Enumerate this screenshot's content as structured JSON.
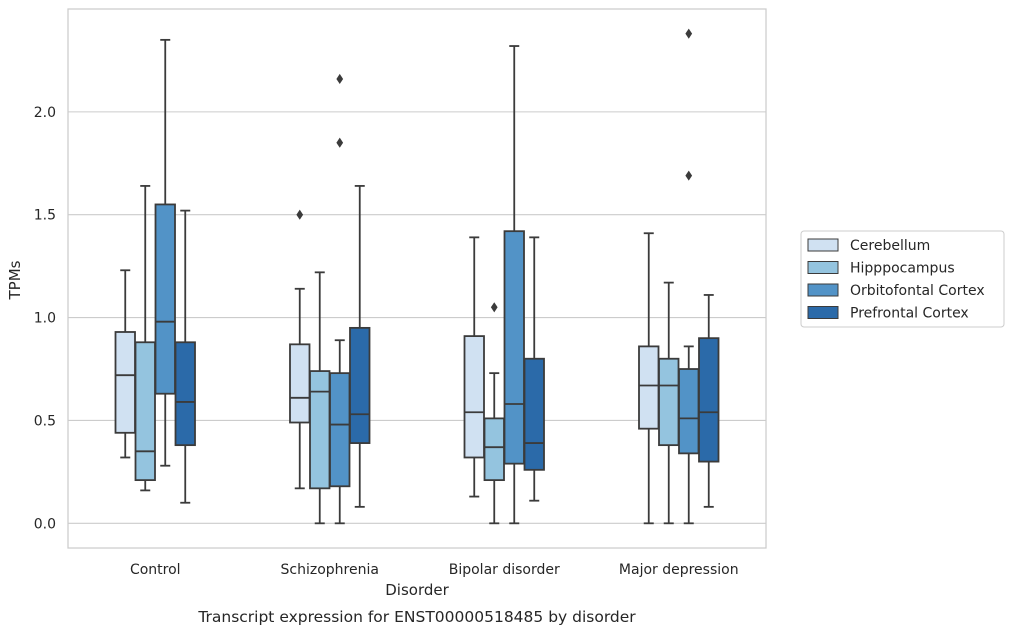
{
  "chart_data": {
    "type": "box",
    "title": "Transcript expression for ENST00000518485 by disorder",
    "xlabel": "Disorder",
    "ylabel": "TPMs",
    "ylim": [
      -0.12,
      2.5
    ],
    "yticks": [
      0.0,
      0.5,
      1.0,
      1.5,
      2.0
    ],
    "ytick_labels": [
      "0.0",
      "0.5",
      "1.0",
      "1.5",
      "2.0"
    ],
    "grid": "horizontal",
    "legend_position": "right",
    "categories": [
      "Control",
      "Schizophrenia",
      "Bipolar disorder",
      "Major depression"
    ],
    "series": [
      {
        "name": "Cerebellum",
        "color": "#d0e1f2",
        "boxes": [
          {
            "whislo": 0.32,
            "q1": 0.44,
            "med": 0.72,
            "q3": 0.93,
            "whishi": 1.23,
            "fliers": []
          },
          {
            "whislo": 0.17,
            "q1": 0.49,
            "med": 0.61,
            "q3": 0.87,
            "whishi": 1.14,
            "fliers": [
              1.5
            ]
          },
          {
            "whislo": 0.13,
            "q1": 0.32,
            "med": 0.54,
            "q3": 0.91,
            "whishi": 1.39,
            "fliers": []
          },
          {
            "whislo": 0.0,
            "q1": 0.46,
            "med": 0.67,
            "q3": 0.86,
            "whishi": 1.41,
            "fliers": []
          }
        ]
      },
      {
        "name": "Hipppocampus",
        "color": "#94c4df",
        "boxes": [
          {
            "whislo": 0.16,
            "q1": 0.21,
            "med": 0.35,
            "q3": 0.88,
            "whishi": 1.64,
            "fliers": []
          },
          {
            "whislo": 0.0,
            "q1": 0.17,
            "med": 0.64,
            "q3": 0.74,
            "whishi": 1.22,
            "fliers": []
          },
          {
            "whislo": 0.0,
            "q1": 0.21,
            "med": 0.37,
            "q3": 0.51,
            "whishi": 0.73,
            "fliers": [
              1.05
            ]
          },
          {
            "whislo": 0.0,
            "q1": 0.38,
            "med": 0.67,
            "q3": 0.8,
            "whishi": 1.17,
            "fliers": []
          }
        ]
      },
      {
        "name": "Orbitofontal Cortex",
        "color": "#5293c7",
        "boxes": [
          {
            "whislo": 0.28,
            "q1": 0.63,
            "med": 0.98,
            "q3": 1.55,
            "whishi": 2.35,
            "fliers": []
          },
          {
            "whislo": 0.0,
            "q1": 0.18,
            "med": 0.48,
            "q3": 0.73,
            "whishi": 0.89,
            "fliers": [
              1.85,
              2.16
            ]
          },
          {
            "whislo": 0.0,
            "q1": 0.29,
            "med": 0.58,
            "q3": 1.42,
            "whishi": 2.32,
            "fliers": []
          },
          {
            "whislo": 0.0,
            "q1": 0.34,
            "med": 0.51,
            "q3": 0.75,
            "whishi": 0.86,
            "fliers": [
              1.69,
              2.38
            ]
          }
        ]
      },
      {
        "name": "Prefrontal Cortex",
        "color": "#2b6aa9",
        "boxes": [
          {
            "whislo": 0.1,
            "q1": 0.38,
            "med": 0.59,
            "q3": 0.88,
            "whishi": 1.52,
            "fliers": []
          },
          {
            "whislo": 0.08,
            "q1": 0.39,
            "med": 0.53,
            "q3": 0.95,
            "whishi": 1.64,
            "fliers": []
          },
          {
            "whislo": 0.11,
            "q1": 0.26,
            "med": 0.39,
            "q3": 0.8,
            "whishi": 1.39,
            "fliers": []
          },
          {
            "whislo": 0.08,
            "q1": 0.3,
            "med": 0.54,
            "q3": 0.9,
            "whishi": 1.11,
            "fliers": []
          }
        ]
      }
    ]
  }
}
